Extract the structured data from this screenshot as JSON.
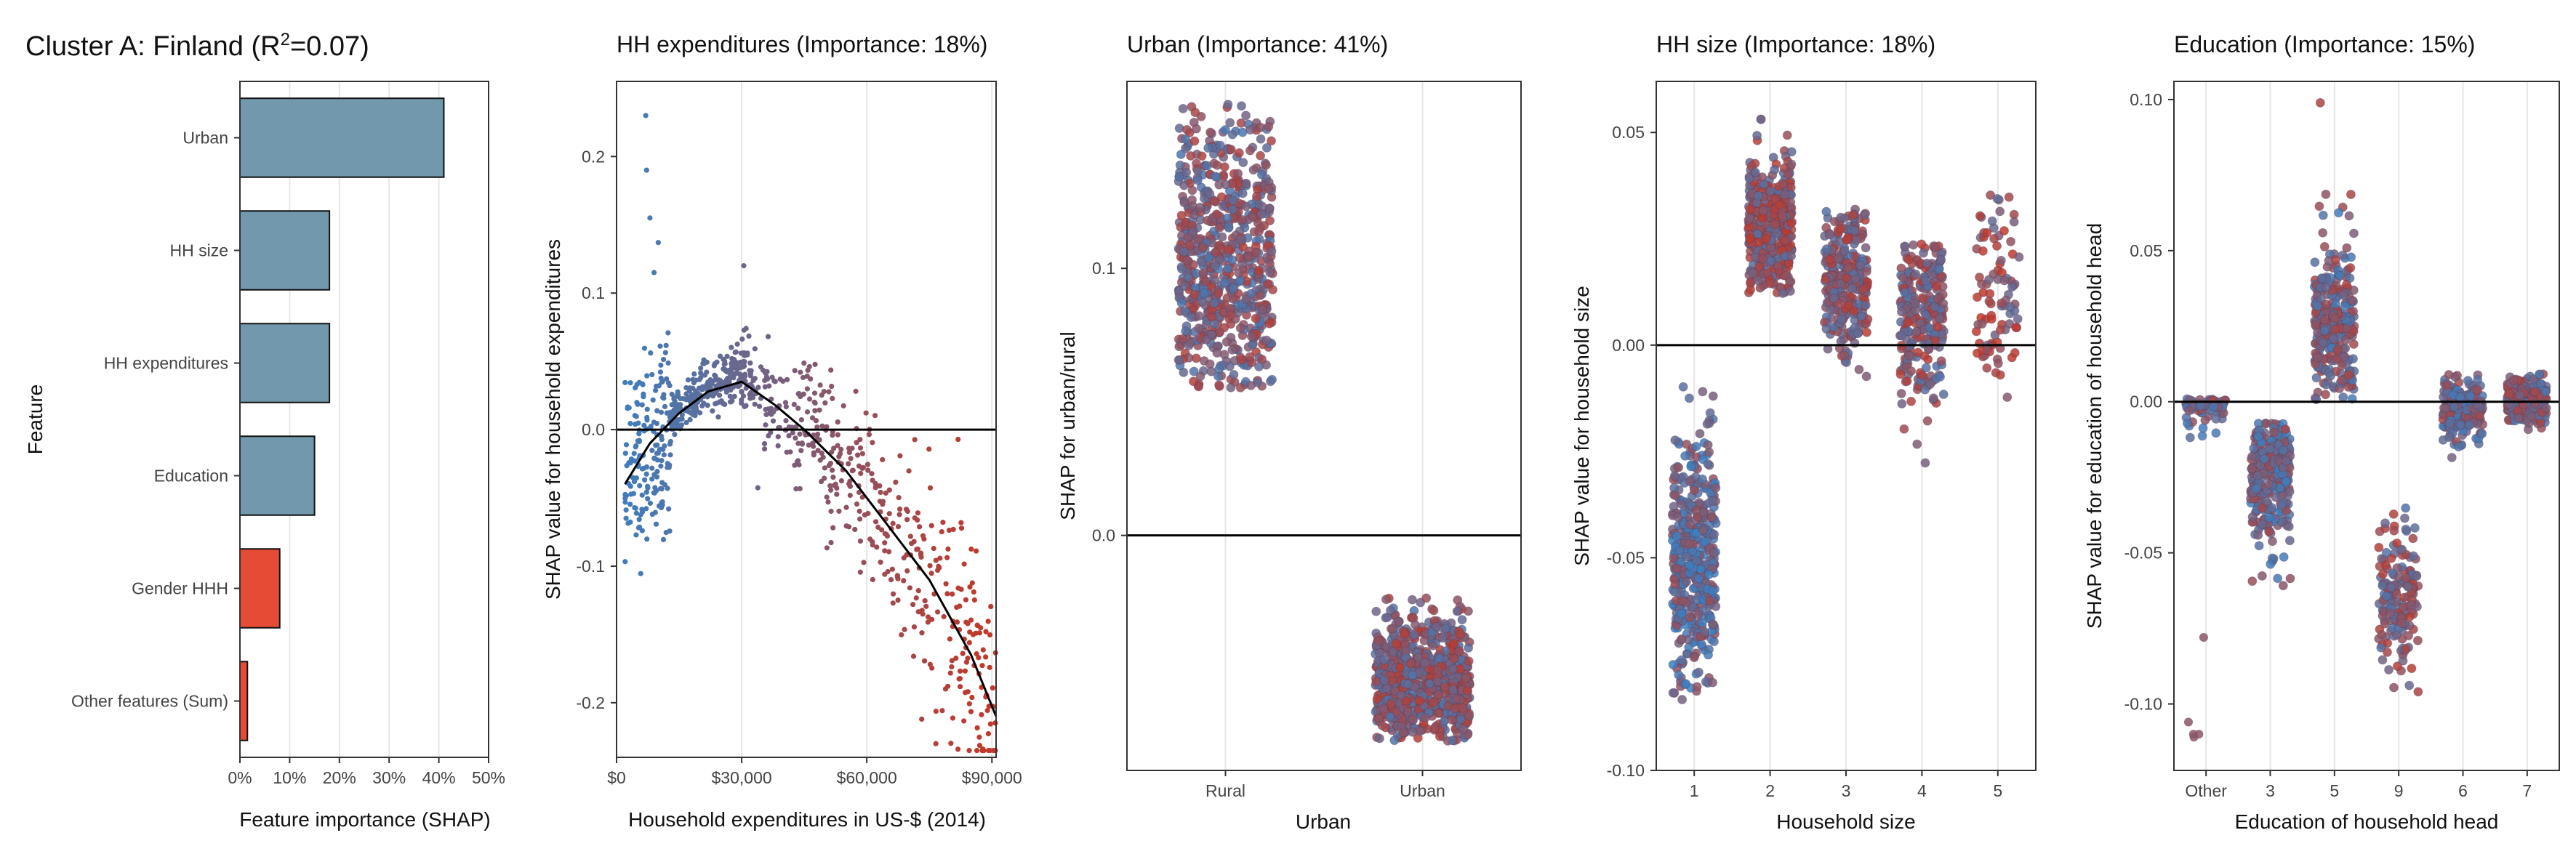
{
  "figure_title": "Cluster A: Finland (R",
  "figure_title_sup": "2",
  "figure_title_tail": "=0.07)",
  "colors": {
    "bar_main": "#7198AC",
    "bar_gender": "#E64B35",
    "low": "#3C7FC0",
    "high": "#C0392B",
    "zero_line": "#000000"
  },
  "chart_data": [
    {
      "id": "importance",
      "type": "bar",
      "orientation": "horizontal",
      "title": "",
      "xlabel": "Feature importance (SHAP)",
      "ylabel": "Feature",
      "categories": [
        "Urban",
        "HH size",
        "HH expenditures",
        "Education",
        "Gender HHH",
        "Other features (Sum)"
      ],
      "values": [
        0.41,
        0.18,
        0.18,
        0.15,
        0.08,
        0.015
      ],
      "bar_colors": [
        "#7198AC",
        "#7198AC",
        "#7198AC",
        "#7198AC",
        "#E64B35",
        "#E64B35"
      ],
      "xlim": [
        0,
        0.5
      ],
      "xticks": [
        0,
        0.1,
        0.2,
        0.3,
        0.4,
        0.5
      ],
      "xtick_labels": [
        "0%",
        "10%",
        "20%",
        "30%",
        "40%",
        "50%"
      ],
      "grid": "vertical"
    },
    {
      "id": "expenditures",
      "type": "scatter",
      "title": "HH expenditures (Importance: 18%)",
      "xlabel": "Household expenditures in US-$ (2014)",
      "ylabel": "SHAP value for household expenditures",
      "xlim": [
        0,
        91000
      ],
      "ylim": [
        -0.24,
        0.255
      ],
      "xticks": [
        0,
        30000,
        60000,
        90000
      ],
      "xtick_labels": [
        "$0",
        "$30,000",
        "$60,000",
        "$90,000"
      ],
      "yticks": [
        -0.2,
        -0.1,
        0.0,
        0.1,
        0.2
      ],
      "ytick_labels": [
        "-0.2",
        "-0.1",
        "0.0",
        "0.1",
        "0.2"
      ],
      "trend": {
        "x": [
          2000,
          8000,
          15000,
          22000,
          30000,
          38000,
          45000,
          55000,
          65000,
          75000,
          85000,
          91000
        ],
        "y": [
          -0.04,
          -0.01,
          0.012,
          0.028,
          0.035,
          0.018,
          0.0,
          -0.03,
          -0.07,
          -0.11,
          -0.165,
          -0.21
        ]
      },
      "clusters": [
        {
          "x_range": [
            2000,
            13000
          ],
          "center": [
            -0.07,
            -0.0125,
            0.024,
            0.025
          ],
          "spread": 0.035,
          "n": 180,
          "hue": 0.05
        },
        {
          "x_range": [
            13000,
            33000
          ],
          "center": [
            0.01,
            0.022,
            0.034,
            0.03
          ],
          "spread": 0.022,
          "n": 300,
          "hue": 0.3
        },
        {
          "x_range": [
            33000,
            91000
          ],
          "center": [
            0.02,
            -0.025,
            -0.1,
            -0.21
          ],
          "spread": 0.03,
          "n": 420,
          "hue": 0.8
        }
      ],
      "outliers": [
        [
          7000,
          0.23
        ],
        [
          7200,
          0.19
        ],
        [
          8000,
          0.155
        ],
        [
          10000,
          0.137
        ],
        [
          9000,
          0.115
        ],
        [
          30500,
          0.12
        ]
      ]
    },
    {
      "id": "urban",
      "type": "scatter",
      "title": "Urban (Importance: 41%)",
      "xlabel": "Urban",
      "ylabel": "SHAP for urban/rural",
      "categories": [
        "Rural",
        "Urban"
      ],
      "ylim": [
        -0.088,
        0.17
      ],
      "yticks": [
        0.0,
        0.1
      ],
      "ytick_labels": [
        "0.0",
        "0.1"
      ],
      "groups": [
        {
          "category": "Rural",
          "center": 0.101,
          "spread": 0.03,
          "min": 0.055,
          "max": 0.162,
          "n": 700,
          "hue": 0.5
        },
        {
          "category": "Urban",
          "center": -0.055,
          "spread": 0.013,
          "min": -0.077,
          "max": -0.023,
          "n": 800,
          "hue": 0.55
        }
      ]
    },
    {
      "id": "hhsize",
      "type": "scatter",
      "title": "HH size (Importance: 18%)",
      "xlabel": "Household size",
      "ylabel": "SHAP value for household size",
      "categories": [
        "1",
        "2",
        "3",
        "4",
        "5"
      ],
      "ylim": [
        -0.1,
        0.062
      ],
      "yticks": [
        -0.1,
        -0.05,
        0.0,
        0.05
      ],
      "ytick_labels": [
        "-0.10",
        "-0.05",
        "0.00",
        "0.05"
      ],
      "groups": [
        {
          "category": "1",
          "center": -0.05,
          "spread": 0.014,
          "min": -0.093,
          "max": -0.009,
          "n": 450,
          "hue": 0.3
        },
        {
          "category": "2",
          "center": 0.027,
          "spread": 0.008,
          "min": 0.012,
          "max": 0.056,
          "n": 400,
          "hue": 0.6
        },
        {
          "category": "3",
          "center": 0.016,
          "spread": 0.008,
          "min": -0.011,
          "max": 0.032,
          "n": 300,
          "hue": 0.55
        },
        {
          "category": "4",
          "center": 0.008,
          "spread": 0.01,
          "min": -0.036,
          "max": 0.024,
          "n": 260,
          "hue": 0.55
        },
        {
          "category": "5",
          "center": 0.01,
          "spread": 0.012,
          "min": -0.029,
          "max": 0.042,
          "n": 90,
          "hue": 0.65
        }
      ]
    },
    {
      "id": "education",
      "type": "scatter",
      "title": "Education (Importance: 15%)",
      "xlabel": "Education of household head",
      "ylabel": "SHAP value for education of household head",
      "categories": [
        "Other",
        "3",
        "5",
        "9",
        "6",
        "7"
      ],
      "ylim": [
        -0.122,
        0.106
      ],
      "yticks": [
        -0.1,
        -0.05,
        0.0,
        0.05,
        0.1
      ],
      "ytick_labels": [
        "-0.10",
        "-0.05",
        "0.00",
        "0.05",
        "0.10"
      ],
      "groups": [
        {
          "category": "Other",
          "center": 0.0,
          "spread": 0.002,
          "min": -0.012,
          "max": 0.001,
          "n": 80,
          "hue": 0.4
        },
        {
          "category": "3",
          "center": -0.02,
          "spread": 0.012,
          "min": -0.061,
          "max": -0.007,
          "n": 300,
          "hue": 0.4
        },
        {
          "category": "5",
          "center": 0.025,
          "spread": 0.015,
          "min": 0.0,
          "max": 0.1,
          "n": 280,
          "hue": 0.45
        },
        {
          "category": "9",
          "center": -0.065,
          "spread": 0.012,
          "min": -0.106,
          "max": -0.018,
          "n": 160,
          "hue": 0.55
        },
        {
          "category": "6",
          "center": -0.003,
          "spread": 0.005,
          "min": -0.034,
          "max": 0.012,
          "n": 220,
          "hue": 0.4
        },
        {
          "category": "7",
          "center": 0.0,
          "spread": 0.004,
          "min": -0.01,
          "max": 0.011,
          "n": 220,
          "hue": 0.5
        }
      ],
      "outliers": [
        [
          0,
          -0.078
        ],
        [
          0,
          -0.106
        ],
        [
          0,
          -0.11
        ],
        [
          0,
          -0.111
        ],
        [
          0,
          -0.11
        ]
      ]
    }
  ]
}
